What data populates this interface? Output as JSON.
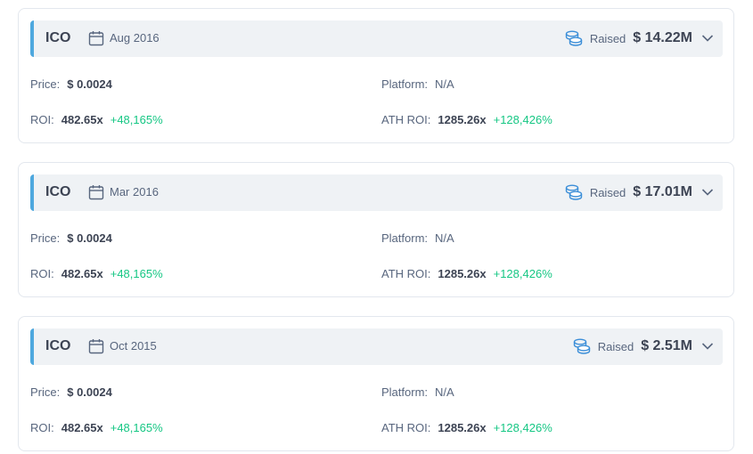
{
  "rounds": [
    {
      "type": "ICO",
      "date": "Aug 2016",
      "raised_label": "Raised",
      "raised_value": "$ 14.22M",
      "price_label": "Price:",
      "price_value": "$ 0.0024",
      "platform_label": "Platform:",
      "platform_value": "N/A",
      "roi_label": "ROI:",
      "roi_value": "482.65x",
      "roi_change": "+48,165%",
      "ath_label": "ATH ROI:",
      "ath_value": "1285.26x",
      "ath_change": "+128,426%"
    },
    {
      "type": "ICO",
      "date": "Mar 2016",
      "raised_label": "Raised",
      "raised_value": "$ 17.01M",
      "price_label": "Price:",
      "price_value": "$ 0.0024",
      "platform_label": "Platform:",
      "platform_value": "N/A",
      "roi_label": "ROI:",
      "roi_value": "482.65x",
      "roi_change": "+48,165%",
      "ath_label": "ATH ROI:",
      "ath_value": "1285.26x",
      "ath_change": "+128,426%"
    },
    {
      "type": "ICO",
      "date": "Oct 2015",
      "raised_label": "Raised",
      "raised_value": "$ 2.51M",
      "price_label": "Price:",
      "price_value": "$ 0.0024",
      "platform_label": "Platform:",
      "platform_value": "N/A",
      "roi_label": "ROI:",
      "roi_value": "482.65x",
      "roi_change": "+48,165%",
      "ath_label": "ATH ROI:",
      "ath_value": "1285.26x",
      "ath_change": "+128,426%"
    }
  ],
  "colors": {
    "accent_bar": "#4ea8de",
    "positive": "#16c784",
    "header_bg": "#eff2f5"
  },
  "icons": {
    "date": "calendar-icon",
    "raised": "coins-icon",
    "expand": "chevron-down-icon"
  }
}
